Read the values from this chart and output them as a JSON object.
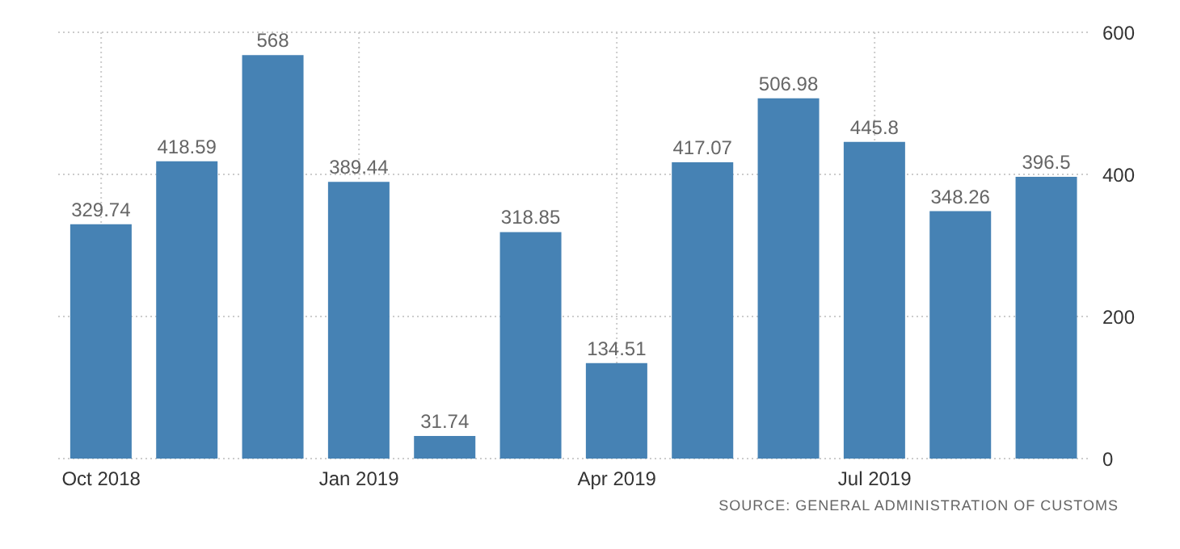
{
  "chart_data": {
    "type": "bar",
    "categories": [
      "Oct 2018",
      null,
      null,
      "Jan 2019",
      null,
      null,
      "Apr 2019",
      null,
      null,
      "Jul 2019",
      null,
      null
    ],
    "values": [
      329.74,
      418.59,
      568,
      389.44,
      31.74,
      318.85,
      134.51,
      417.07,
      506.98,
      445.8,
      348.26,
      396.5
    ],
    "color": "#4682b4",
    "ylim": [
      0,
      600
    ],
    "yticks": [
      0,
      200,
      400,
      600
    ],
    "grid": true,
    "data_labels": true,
    "annotations": [
      "SOURCE: GENERAL ADMINISTRATION OF CUSTOMS"
    ]
  }
}
